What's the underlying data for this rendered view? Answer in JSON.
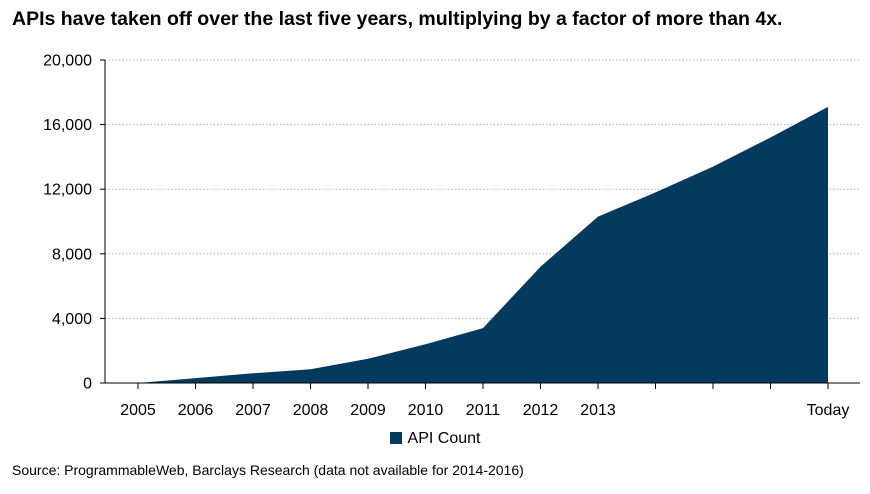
{
  "title": "APIs have taken off over the last five years, multiplying by a factor of more than 4x.",
  "source": "Source: ProgrammableWeb, Barclays Research (data not available for 2014-2016)",
  "chart_data": {
    "type": "area",
    "x": [
      "2005",
      "2006",
      "2007",
      "2008",
      "2009",
      "2010",
      "2011",
      "2012",
      "2013",
      "",
      "",
      "",
      "Today"
    ],
    "x_tick_labels": [
      "2005",
      "2006",
      "2007",
      "2008",
      "2009",
      "2010",
      "2011",
      "2012",
      "2013",
      "Today"
    ],
    "series": [
      {
        "name": "API Count",
        "values": [
          0,
          300,
          600,
          850,
          1500,
          2400,
          3400,
          7200,
          10300,
          11800,
          13400,
          15200,
          17100
        ]
      }
    ],
    "ylim": [
      0,
      20000
    ],
    "y_ticks": [
      0,
      4000,
      8000,
      12000,
      16000,
      20000
    ],
    "y_tick_labels": [
      "0",
      "4,000",
      "8,000",
      "12,000",
      "16,000",
      "20,000"
    ],
    "xlabel": "",
    "ylabel": "",
    "grid": "horizontal dotted",
    "legend_placement": "bottom-center",
    "color": "#053A5F"
  }
}
